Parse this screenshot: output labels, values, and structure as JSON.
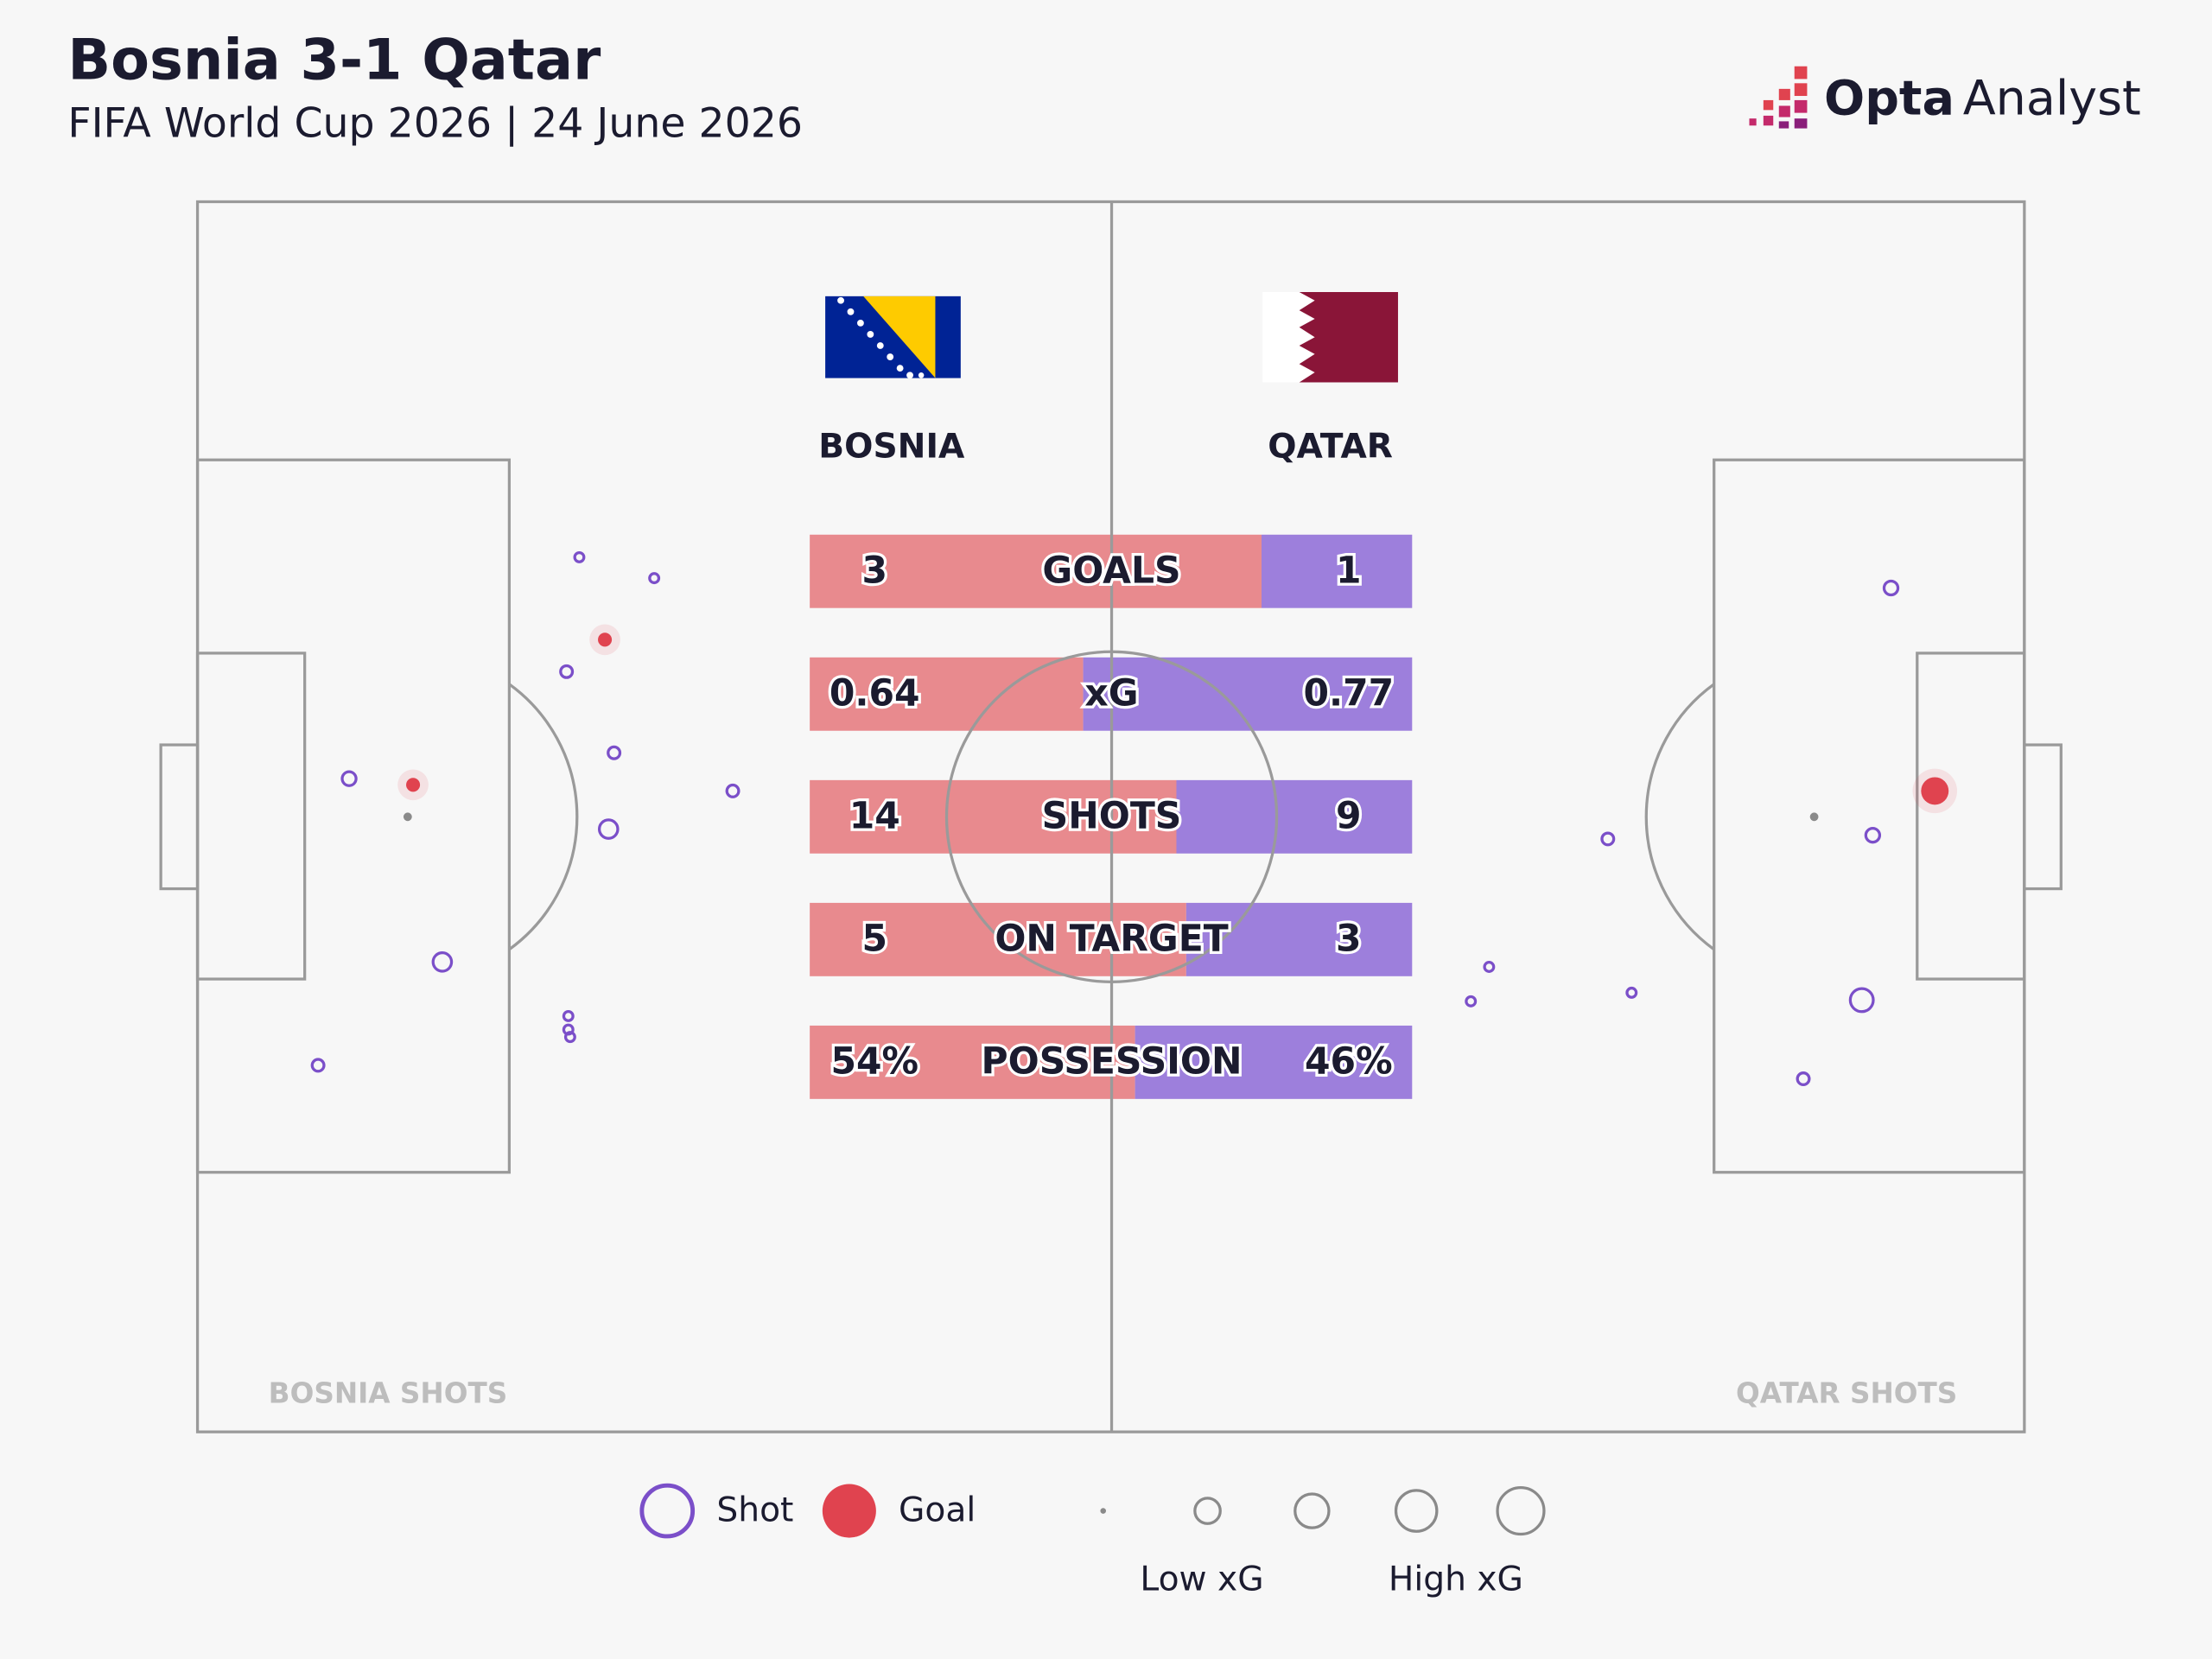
{
  "chart_data": {
    "type": "shotmap",
    "title": "Bosnia 3-1 Qatar",
    "subtitle": "FIFA World Cup 2026 | 24 June 2026",
    "logo": {
      "bold": "Opta",
      "light": "Analyst"
    },
    "stats": {
      "categories": [
        "GOALS",
        "xG",
        "SHOTS",
        "ON TARGET",
        "POSSESSION"
      ],
      "series": [
        {
          "name": "BOSNIA",
          "color": "#e88a8e",
          "values": [
            3,
            0.64,
            14,
            5,
            54
          ],
          "value_labels": [
            "3",
            "0.64",
            "14",
            "5",
            "54%"
          ]
        },
        {
          "name": "QATAR",
          "color": "#9d7fdc",
          "values": [
            1,
            0.77,
            9,
            3,
            46
          ],
          "value_labels": [
            "1",
            "0.77",
            "9",
            "3",
            "46%"
          ]
        }
      ]
    },
    "shots": [
      {
        "name": "BOSNIA SHOTS",
        "x": [
          20.9,
          25.0,
          22.3,
          20.2,
          22.8,
          29.3,
          22.5,
          8.3,
          11.8,
          13.4,
          6.6,
          20.3,
          20.3,
          20.4
        ],
        "y": [
          28.9,
          30.6,
          35.6,
          38.2,
          44.8,
          47.9,
          51.0,
          46.9,
          47.4,
          61.8,
          70.2,
          66.2,
          67.3,
          67.9
        ],
        "xg": [
          0.02,
          0.02,
          0.06,
          0.04,
          0.04,
          0.04,
          0.12,
          0.06,
          0.06,
          0.12,
          0.04,
          0.02,
          0.02,
          0.02
        ],
        "goal": [
          false,
          false,
          true,
          false,
          false,
          false,
          false,
          false,
          true,
          false,
          false,
          false,
          false,
          false
        ]
      },
      {
        "name": "QATAR SHOTS",
        "x": [
          92.7,
          95.1,
          91.7,
          77.2,
          70.7,
          69.7,
          78.5,
          91.1,
          87.9
        ],
        "y": [
          31.4,
          47.9,
          51.5,
          51.8,
          62.2,
          65.0,
          64.3,
          64.9,
          71.3
        ],
        "xg": [
          0.06,
          0.3,
          0.06,
          0.04,
          0.02,
          0.02,
          0.02,
          0.2,
          0.04
        ],
        "goal": [
          false,
          true,
          false,
          false,
          false,
          false,
          false,
          false,
          false
        ]
      }
    ],
    "shot_color": "#7b4fc9",
    "goal_color": "#e0434f",
    "legend": {
      "shot": "Shot",
      "goal": "Goal",
      "low": "Low xG",
      "high": "High xG"
    }
  }
}
